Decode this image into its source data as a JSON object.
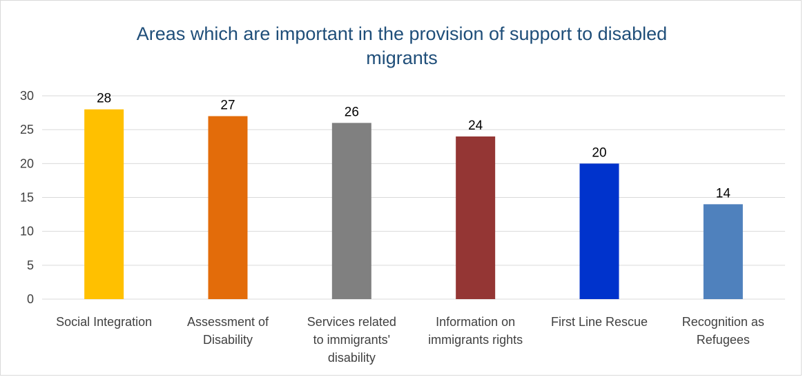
{
  "chart_data": {
    "type": "bar",
    "title_lines": [
      "Areas which are important in the provision of support to disabled",
      "migrants"
    ],
    "xlabel": "",
    "ylabel": "",
    "ylim": [
      0,
      30
    ],
    "yticks": [
      0,
      5,
      10,
      15,
      20,
      25,
      30
    ],
    "grid": true,
    "legend": "none",
    "categories": [
      [
        "Social Integration"
      ],
      [
        "Assessment of",
        "Disability"
      ],
      [
        "Services related",
        "to immigrants'",
        "disability"
      ],
      [
        "Information on",
        "immigrants rights"
      ],
      [
        "First Line Rescue"
      ],
      [
        "Recognition as",
        "Refugees"
      ]
    ],
    "values": [
      28,
      27,
      26,
      24,
      20,
      14
    ],
    "colors": [
      "#ffc000",
      "#e36c0a",
      "#808080",
      "#943634",
      "#0033cc",
      "#4f81bd"
    ]
  }
}
